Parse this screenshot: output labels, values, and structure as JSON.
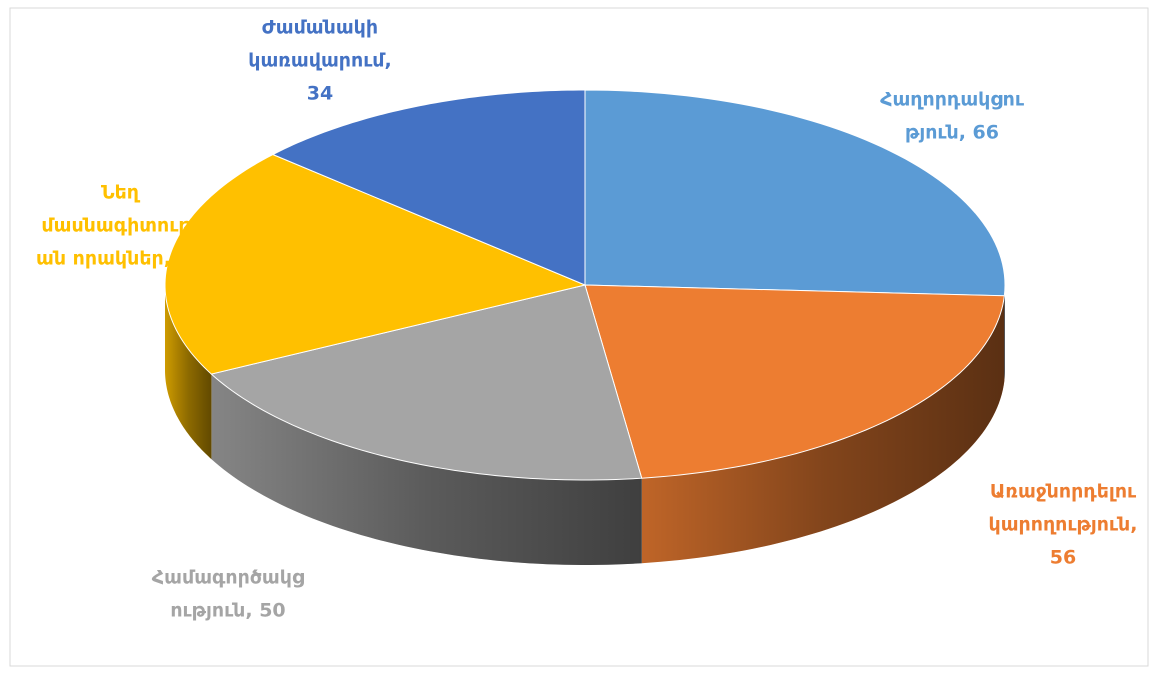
{
  "chart_data": {
    "type": "pie",
    "values": [
      66,
      56,
      50,
      49,
      34
    ],
    "colors": [
      "#5b9bd5",
      "#ed7d31",
      "#a5a5a5",
      "#ffc000",
      "#4472c4"
    ],
    "data_labels": [
      [
        "Հաղորդակցու",
        "թյուն, 66"
      ],
      [
        "Առաջնորդելու",
        "կարողություն,",
        "56"
      ],
      [
        "Համագործակց",
        "ություն, 50"
      ],
      [
        "Նեղ",
        "մասնագիտությ",
        "ան որակներ, 49"
      ],
      [
        "Ժամանակի",
        "կառավարում,",
        "34"
      ]
    ]
  }
}
